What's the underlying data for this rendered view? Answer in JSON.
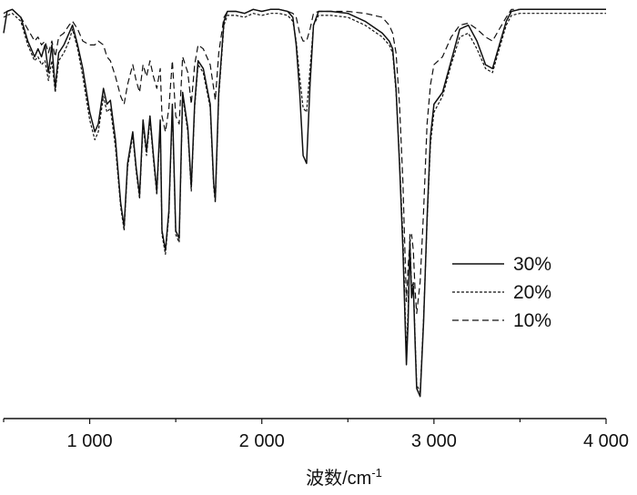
{
  "chart_data": {
    "type": "line",
    "title": "",
    "xlabel": "波数/cm",
    "xlabel_superscript": "-1",
    "ylabel": "",
    "xlim": [
      500,
      4000
    ],
    "ylim": [
      0,
      1
    ],
    "x_ticks": [
      1000,
      2000,
      3000,
      4000
    ],
    "x_tick_labels": [
      "1 000",
      "2 000",
      "3 000",
      "4 000"
    ],
    "grid": false,
    "legend": {
      "position": "right-middle",
      "entries": [
        "30%",
        "20%",
        "10%"
      ]
    },
    "series": [
      {
        "name": "30%",
        "style": "solid",
        "x": [
          500,
          520,
          550,
          600,
          640,
          680,
          700,
          720,
          740,
          760,
          780,
          800,
          820,
          850,
          880,
          900,
          930,
          960,
          1000,
          1030,
          1050,
          1080,
          1100,
          1120,
          1150,
          1180,
          1200,
          1220,
          1250,
          1270,
          1290,
          1310,
          1330,
          1350,
          1370,
          1390,
          1410,
          1420,
          1440,
          1460,
          1480,
          1500,
          1520,
          1540,
          1570,
          1590,
          1610,
          1630,
          1660,
          1700,
          1720,
          1730,
          1750,
          1780,
          1800,
          1850,
          1900,
          1950,
          2000,
          2050,
          2100,
          2150,
          2180,
          2200,
          2220,
          2240,
          2260,
          2280,
          2300,
          2330,
          2400,
          2500,
          2600,
          2700,
          2740,
          2760,
          2780,
          2800,
          2820,
          2840,
          2850,
          2860,
          2870,
          2880,
          2890,
          2900,
          2920,
          2940,
          2960,
          2980,
          3000,
          3050,
          3100,
          3150,
          3200,
          3250,
          3300,
          3340,
          3380,
          3420,
          3450,
          3500,
          3600,
          3700,
          3800,
          3900,
          4000
        ],
        "values": [
          0.93,
          0.985,
          0.99,
          0.97,
          0.91,
          0.87,
          0.89,
          0.87,
          0.9,
          0.83,
          0.9,
          0.79,
          0.88,
          0.9,
          0.93,
          0.95,
          0.9,
          0.84,
          0.73,
          0.68,
          0.7,
          0.79,
          0.75,
          0.76,
          0.66,
          0.5,
          0.44,
          0.6,
          0.68,
          0.59,
          0.52,
          0.71,
          0.63,
          0.72,
          0.62,
          0.53,
          0.71,
          0.43,
          0.38,
          0.48,
          0.75,
          0.43,
          0.41,
          0.78,
          0.69,
          0.54,
          0.75,
          0.86,
          0.84,
          0.75,
          0.55,
          0.51,
          0.78,
          0.96,
          0.985,
          0.985,
          0.98,
          0.99,
          0.985,
          0.99,
          0.99,
          0.985,
          0.97,
          0.9,
          0.78,
          0.62,
          0.6,
          0.8,
          0.95,
          0.985,
          0.985,
          0.98,
          0.96,
          0.93,
          0.91,
          0.89,
          0.79,
          0.6,
          0.38,
          0.09,
          0.2,
          0.4,
          0.26,
          0.29,
          0.15,
          0.03,
          0.01,
          0.2,
          0.46,
          0.67,
          0.75,
          0.78,
          0.86,
          0.94,
          0.95,
          0.91,
          0.85,
          0.84,
          0.9,
          0.96,
          0.985,
          0.99,
          0.99,
          0.99,
          0.99,
          0.99,
          0.99
        ]
      },
      {
        "name": "20%",
        "style": "dotted",
        "x": [
          500,
          520,
          550,
          600,
          640,
          680,
          700,
          720,
          740,
          760,
          780,
          800,
          820,
          850,
          880,
          900,
          930,
          960,
          1000,
          1030,
          1050,
          1080,
          1100,
          1120,
          1150,
          1180,
          1200,
          1220,
          1250,
          1270,
          1290,
          1310,
          1330,
          1350,
          1370,
          1390,
          1410,
          1420,
          1440,
          1460,
          1480,
          1500,
          1520,
          1540,
          1570,
          1590,
          1610,
          1630,
          1660,
          1700,
          1720,
          1730,
          1750,
          1780,
          1800,
          1850,
          1900,
          1950,
          2000,
          2050,
          2100,
          2150,
          2180,
          2200,
          2220,
          2240,
          2260,
          2280,
          2300,
          2330,
          2400,
          2500,
          2600,
          2700,
          2740,
          2760,
          2780,
          2800,
          2820,
          2840,
          2850,
          2860,
          2870,
          2880,
          2890,
          2900,
          2920,
          2940,
          2960,
          2980,
          3000,
          3050,
          3100,
          3150,
          3200,
          3250,
          3300,
          3340,
          3380,
          3420,
          3450,
          3500,
          3600,
          3700,
          3800,
          3900,
          4000
        ],
        "values": [
          0.97,
          0.975,
          0.98,
          0.96,
          0.9,
          0.86,
          0.87,
          0.85,
          0.86,
          0.81,
          0.86,
          0.78,
          0.86,
          0.88,
          0.91,
          0.94,
          0.89,
          0.82,
          0.71,
          0.66,
          0.68,
          0.77,
          0.73,
          0.74,
          0.64,
          0.49,
          0.43,
          0.59,
          0.67,
          0.58,
          0.51,
          0.7,
          0.62,
          0.71,
          0.61,
          0.52,
          0.7,
          0.42,
          0.37,
          0.47,
          0.74,
          0.42,
          0.4,
          0.77,
          0.68,
          0.53,
          0.74,
          0.85,
          0.83,
          0.74,
          0.54,
          0.5,
          0.77,
          0.95,
          0.975,
          0.975,
          0.97,
          0.98,
          0.975,
          0.98,
          0.98,
          0.975,
          0.96,
          0.91,
          0.82,
          0.74,
          0.73,
          0.84,
          0.95,
          0.975,
          0.975,
          0.97,
          0.95,
          0.92,
          0.9,
          0.88,
          0.78,
          0.61,
          0.41,
          0.12,
          0.23,
          0.42,
          0.28,
          0.3,
          0.16,
          0.04,
          0.02,
          0.21,
          0.45,
          0.65,
          0.73,
          0.77,
          0.85,
          0.92,
          0.93,
          0.89,
          0.84,
          0.83,
          0.89,
          0.95,
          0.975,
          0.98,
          0.98,
          0.98,
          0.98,
          0.98,
          0.98
        ]
      },
      {
        "name": "10%",
        "style": "dashed",
        "x": [
          500,
          520,
          550,
          600,
          640,
          680,
          700,
          720,
          740,
          760,
          780,
          800,
          820,
          850,
          880,
          900,
          930,
          960,
          1000,
          1030,
          1050,
          1080,
          1100,
          1120,
          1150,
          1180,
          1200,
          1220,
          1250,
          1270,
          1290,
          1310,
          1330,
          1350,
          1370,
          1390,
          1410,
          1420,
          1440,
          1460,
          1480,
          1500,
          1520,
          1540,
          1570,
          1590,
          1610,
          1630,
          1660,
          1700,
          1720,
          1730,
          1750,
          1780,
          1800,
          1850,
          1900,
          1950,
          2000,
          2050,
          2100,
          2150,
          2180,
          2200,
          2220,
          2240,
          2260,
          2280,
          2300,
          2330,
          2400,
          2500,
          2600,
          2700,
          2740,
          2760,
          2780,
          2800,
          2820,
          2840,
          2850,
          2860,
          2870,
          2880,
          2890,
          2900,
          2920,
          2940,
          2960,
          2980,
          3000,
          3050,
          3100,
          3150,
          3200,
          3250,
          3300,
          3340,
          3380,
          3420,
          3450,
          3500,
          3600,
          3700,
          3800,
          3900,
          4000
        ],
        "values": [
          0.98,
          0.985,
          0.99,
          0.97,
          0.94,
          0.91,
          0.92,
          0.9,
          0.91,
          0.88,
          0.91,
          0.87,
          0.92,
          0.93,
          0.95,
          0.96,
          0.94,
          0.91,
          0.9,
          0.9,
          0.91,
          0.9,
          0.87,
          0.86,
          0.82,
          0.77,
          0.75,
          0.8,
          0.85,
          0.81,
          0.78,
          0.85,
          0.82,
          0.86,
          0.82,
          0.79,
          0.84,
          0.72,
          0.68,
          0.74,
          0.86,
          0.72,
          0.7,
          0.87,
          0.83,
          0.75,
          0.85,
          0.9,
          0.89,
          0.85,
          0.79,
          0.76,
          0.88,
          0.97,
          0.985,
          0.985,
          0.98,
          0.99,
          0.985,
          0.99,
          0.99,
          0.985,
          0.98,
          0.97,
          0.93,
          0.91,
          0.91,
          0.94,
          0.98,
          0.985,
          0.985,
          0.985,
          0.98,
          0.97,
          0.95,
          0.93,
          0.88,
          0.75,
          0.55,
          0.25,
          0.34,
          0.4,
          0.42,
          0.38,
          0.28,
          0.22,
          0.3,
          0.48,
          0.7,
          0.8,
          0.85,
          0.87,
          0.92,
          0.95,
          0.955,
          0.94,
          0.92,
          0.91,
          0.94,
          0.97,
          0.99,
          0.99,
          0.99,
          0.99,
          0.99,
          0.99,
          0.99
        ]
      }
    ]
  }
}
